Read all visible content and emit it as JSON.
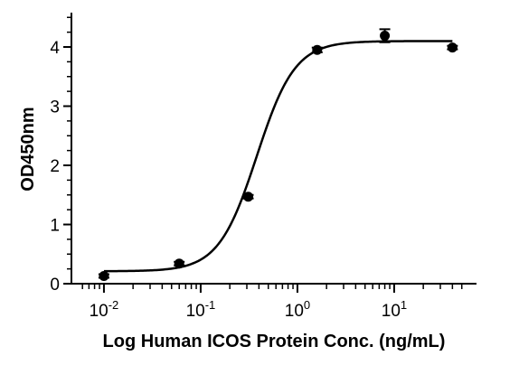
{
  "chart_data": {
    "type": "scatter",
    "xlabel": "Log Human ICOS Protein Conc. (ng/mL)",
    "ylabel": "OD450nm",
    "x_scale": "log",
    "xlim": [
      0.0056,
      56
    ],
    "ylim": [
      0,
      4.6
    ],
    "x_ticks": [
      {
        "value": 0.01,
        "base": "10",
        "exp": "-2"
      },
      {
        "value": 0.1,
        "base": "10",
        "exp": "-1"
      },
      {
        "value": 1,
        "base": "10",
        "exp": "0"
      },
      {
        "value": 10,
        "base": "10",
        "exp": "1"
      }
    ],
    "y_ticks": [
      0,
      1,
      2,
      3,
      4
    ],
    "points": [
      {
        "x": 0.01,
        "y": 0.13,
        "err": 0.03
      },
      {
        "x": 0.06,
        "y": 0.34,
        "err": 0.03
      },
      {
        "x": 0.31,
        "y": 1.47,
        "err": 0.03
      },
      {
        "x": 1.6,
        "y": 3.95,
        "err": 0.04
      },
      {
        "x": 8.0,
        "y": 4.19,
        "err": 0.11
      },
      {
        "x": 40.0,
        "y": 3.99,
        "err": 0.03
      }
    ],
    "fit": {
      "model": "4PL",
      "bottom": 0.21,
      "top": 4.1,
      "ec50": 0.38,
      "hill": 2.2
    },
    "grid": false,
    "legend": "none",
    "colors": {
      "marker": "#000000",
      "line": "#000000",
      "axis": "#000000"
    }
  }
}
